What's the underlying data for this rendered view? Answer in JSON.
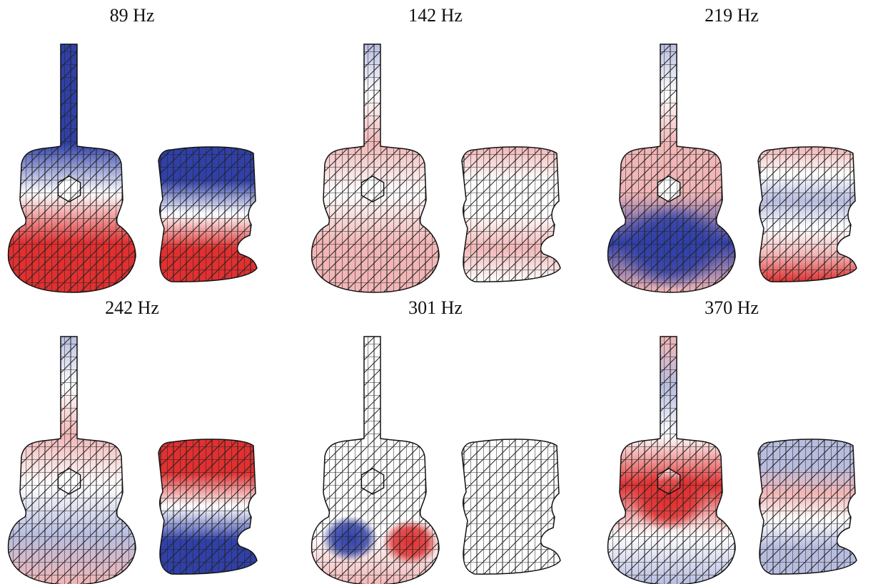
{
  "panels": [
    {
      "title": "89 Hz"
    },
    {
      "title": "142 Hz"
    },
    {
      "title": "219 Hz"
    },
    {
      "title": "242 Hz"
    },
    {
      "title": "301 Hz"
    },
    {
      "title": "370 Hz"
    }
  ]
}
